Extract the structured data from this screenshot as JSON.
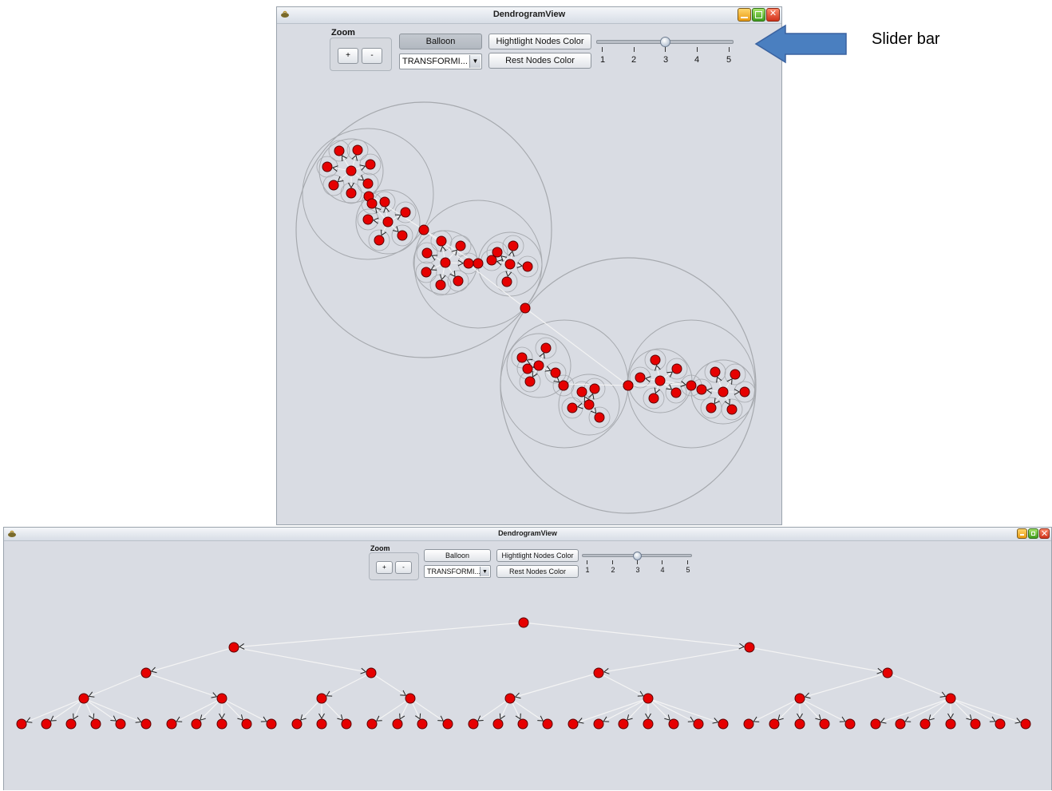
{
  "window_top": {
    "title": "DendrogramView",
    "zoom_label": "Zoom",
    "zoom_in": "+",
    "zoom_out": "-",
    "layout_button": "Balloon",
    "transform_select": "TRANSFORMI...",
    "highlight_button": "Hightlight Nodes Color",
    "rest_button": "Rest Nodes Color",
    "slider_ticks": [
      "1",
      "2",
      "3",
      "4",
      "5"
    ],
    "slider_value": 3
  },
  "annotation": {
    "label": "Slider bar",
    "arrow_color": "#4a7fc0"
  },
  "window_bottom": {
    "title": "DendrogramView",
    "zoom_label": "Zoom",
    "zoom_in": "+",
    "zoom_out": "-",
    "layout_button": "Balloon",
    "transform_select": "TRANSFORMI...",
    "highlight_button": "Hightlight Nodes Color",
    "rest_button": "Rest Nodes Color",
    "slider_ticks": [
      "1",
      "2",
      "3",
      "4",
      "5"
    ],
    "slider_value": 3
  },
  "colors": {
    "node": "#e60000",
    "node_border": "#5a0000",
    "edge": "#f4f4f4",
    "ring": "#a6a9ae",
    "background": "#d9dce3"
  }
}
